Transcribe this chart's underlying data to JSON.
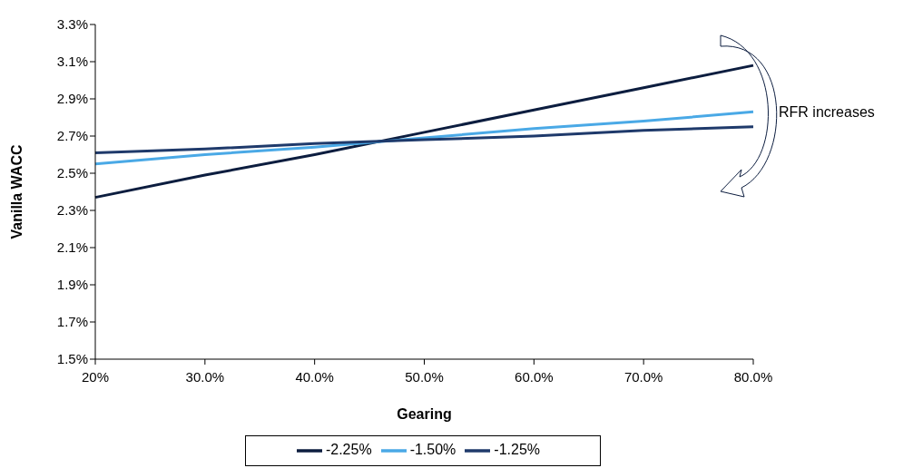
{
  "chart_data": {
    "type": "line",
    "xlabel": "Gearing",
    "ylabel": "Vanilla WACC",
    "categories": [
      "20%",
      "30.0%",
      "40.0%",
      "50.0%",
      "60.0%",
      "70.0%",
      "80.0%"
    ],
    "series": [
      {
        "name": "-2.25%",
        "color": "#0c1d3f",
        "values": [
          2.37,
          2.49,
          2.6,
          2.72,
          2.84,
          2.96,
          3.08
        ]
      },
      {
        "name": "-1.50%",
        "color": "#4aa9e6",
        "values": [
          2.55,
          2.6,
          2.64,
          2.69,
          2.74,
          2.78,
          2.83
        ]
      },
      {
        "name": "-1.25%",
        "color": "#1f3a6b",
        "values": [
          2.61,
          2.63,
          2.66,
          2.68,
          2.7,
          2.73,
          2.75
        ]
      }
    ],
    "ylim": [
      1.5,
      3.3
    ],
    "yticks": [
      {
        "value": 1.5,
        "label": "1.5%"
      },
      {
        "value": 1.7,
        "label": "1.7%"
      },
      {
        "value": 1.9,
        "label": "1.9%"
      },
      {
        "value": 2.1,
        "label": "2.1%"
      },
      {
        "value": 2.3,
        "label": "2.3%"
      },
      {
        "value": 2.5,
        "label": "2.5%"
      },
      {
        "value": 2.7,
        "label": "2.7%"
      },
      {
        "value": 2.9,
        "label": "2.9%"
      },
      {
        "value": 3.1,
        "label": "3.1%"
      },
      {
        "value": 3.3,
        "label": "3.3%"
      }
    ],
    "grid": false,
    "legend": "bottom",
    "marker": "none",
    "line_style": "solid",
    "annotations": [
      "RFR increases"
    ]
  }
}
